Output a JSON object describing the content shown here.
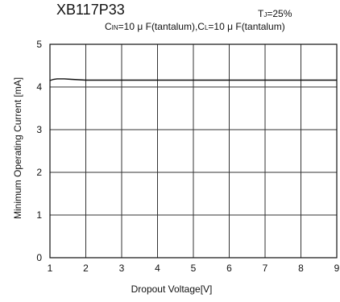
{
  "chart_data": {
    "type": "line",
    "title": "XB117P33",
    "condition_tj": "TJ=25%",
    "condition_caps": "CIN=10 μ F(tantalum),CL=10 μ F(tantalum)",
    "xlabel": "Dropout Voltage[V]",
    "ylabel": "Minimum Operating Current [mA]",
    "xlim": [
      1,
      9
    ],
    "ylim": [
      0,
      5
    ],
    "xticks": [
      "1",
      "2",
      "3",
      "4",
      "5",
      "6",
      "7",
      "8",
      "9"
    ],
    "yticks": [
      "0",
      "1",
      "2",
      "3",
      "4",
      "5"
    ],
    "grid": true,
    "series": [
      {
        "x": [
          1.0,
          1.1,
          1.2,
          1.4,
          1.6,
          1.8,
          2.0,
          3.0,
          4.0,
          5.0,
          6.0,
          7.0,
          8.0,
          9.0
        ],
        "values": [
          4.15,
          4.18,
          4.19,
          4.19,
          4.18,
          4.17,
          4.16,
          4.16,
          4.16,
          4.16,
          4.16,
          4.16,
          4.16,
          4.16
        ]
      }
    ]
  }
}
